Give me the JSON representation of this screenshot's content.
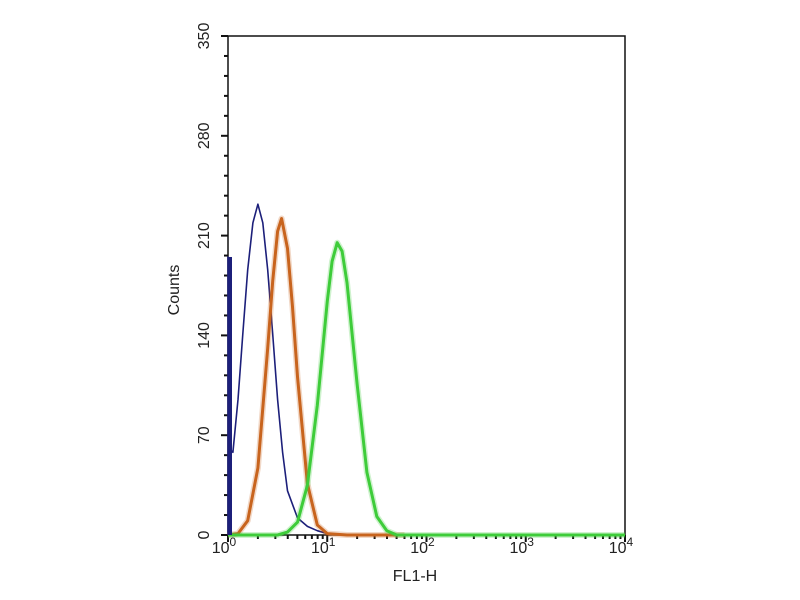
{
  "chart_data": {
    "type": "line",
    "title": "",
    "xlabel": "FL1-H",
    "ylabel": "Counts",
    "xscale": "log",
    "xlim": [
      1,
      10000
    ],
    "ylim": [
      0,
      350
    ],
    "grid": false,
    "x_tick_labels": [
      {
        "base": "10",
        "exp": "0"
      },
      {
        "base": "10",
        "exp": "1"
      },
      {
        "base": "10",
        "exp": "2"
      },
      {
        "base": "10",
        "exp": "3"
      },
      {
        "base": "10",
        "exp": "4"
      }
    ],
    "y_ticks": [
      0,
      70,
      140,
      210,
      280,
      350
    ],
    "series": [
      {
        "color": "#1c1f7a",
        "points": [
          [
            1.0,
            0
          ],
          [
            1.0,
            195
          ],
          [
            1.05,
            60
          ],
          [
            1.12,
            58
          ],
          [
            1.26,
            95
          ],
          [
            1.41,
            141
          ],
          [
            1.58,
            186
          ],
          [
            1.78,
            219
          ],
          [
            2.0,
            232
          ],
          [
            2.24,
            219
          ],
          [
            2.51,
            186
          ],
          [
            2.82,
            141
          ],
          [
            3.16,
            95
          ],
          [
            3.55,
            58
          ],
          [
            3.98,
            31
          ],
          [
            5.01,
            12
          ],
          [
            6.31,
            6
          ],
          [
            7.94,
            3
          ],
          [
            10,
            1
          ],
          [
            15.8,
            0
          ]
        ]
      },
      {
        "color": "#c8641e",
        "points": [
          [
            1.0,
            0
          ],
          [
            1.26,
            1
          ],
          [
            1.58,
            10
          ],
          [
            2.0,
            47
          ],
          [
            2.51,
            131
          ],
          [
            2.82,
            178
          ],
          [
            3.16,
            213
          ],
          [
            3.47,
            222
          ],
          [
            3.98,
            201
          ],
          [
            4.47,
            160
          ],
          [
            5.01,
            111
          ],
          [
            6.31,
            36
          ],
          [
            7.94,
            7
          ],
          [
            10,
            1
          ],
          [
            15.8,
            0
          ],
          [
            60,
            0
          ]
        ]
      },
      {
        "color": "#3ecc3a",
        "points": [
          [
            1.0,
            0
          ],
          [
            3.16,
            0
          ],
          [
            3.98,
            2
          ],
          [
            5.01,
            9
          ],
          [
            6.31,
            35
          ],
          [
            7.94,
            91
          ],
          [
            10,
            164
          ],
          [
            11.2,
            192
          ],
          [
            12.6,
            205
          ],
          [
            14.1,
            199
          ],
          [
            15.8,
            177
          ],
          [
            20,
            106
          ],
          [
            25.1,
            44
          ],
          [
            31.6,
            13
          ],
          [
            39.8,
            3
          ],
          [
            50.1,
            0
          ],
          [
            10000,
            0
          ]
        ]
      }
    ]
  }
}
